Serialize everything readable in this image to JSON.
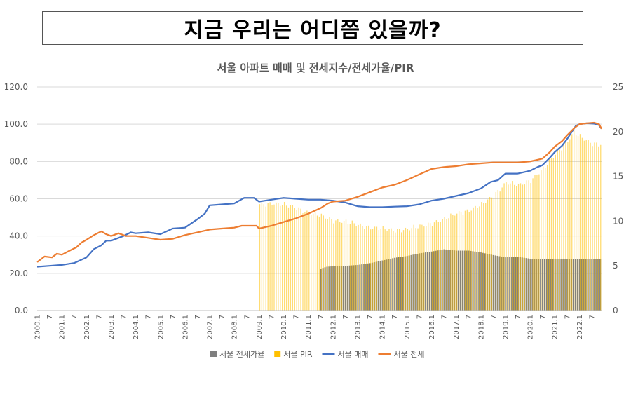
{
  "headline": "지금 우리는 어디쯤 있을까?",
  "chart_data": {
    "type": "line",
    "title": "서울 아파트 매매 및 전세지수/전세가율/PIR",
    "y_left": {
      "min": 0,
      "max": 120,
      "ticks": [
        "0.0",
        "20.0",
        "40.0",
        "60.0",
        "80.0",
        "100.0",
        "120.0"
      ]
    },
    "y_right": {
      "min": 0,
      "max": 25,
      "ticks": [
        "0",
        "5",
        "10",
        "15",
        "20",
        "25"
      ]
    },
    "x_start": 2000,
    "x_end": 2022.9,
    "x_ticks": [
      {
        "x": 2000.0,
        "label": "2000.1"
      },
      {
        "x": 2000.5,
        "label": "7"
      },
      {
        "x": 2001.0,
        "label": "2001.1"
      },
      {
        "x": 2001.5,
        "label": "7"
      },
      {
        "x": 2002.0,
        "label": "2002.1"
      },
      {
        "x": 2002.5,
        "label": "7"
      },
      {
        "x": 2003.0,
        "label": "2003.1"
      },
      {
        "x": 2003.5,
        "label": "7"
      },
      {
        "x": 2004.0,
        "label": "2004.1"
      },
      {
        "x": 2004.5,
        "label": "7"
      },
      {
        "x": 2005.0,
        "label": "2005.1"
      },
      {
        "x": 2005.5,
        "label": "7"
      },
      {
        "x": 2006.0,
        "label": "2006.1"
      },
      {
        "x": 2006.5,
        "label": "7"
      },
      {
        "x": 2007.0,
        "label": "2007.1"
      },
      {
        "x": 2007.5,
        "label": "7"
      },
      {
        "x": 2008.0,
        "label": "2008.1"
      },
      {
        "x": 2008.5,
        "label": "7"
      },
      {
        "x": 2009.0,
        "label": "2009.1"
      },
      {
        "x": 2009.5,
        "label": "7"
      },
      {
        "x": 2010.0,
        "label": "2010.1"
      },
      {
        "x": 2010.5,
        "label": "7"
      },
      {
        "x": 2011.0,
        "label": "2011.1"
      },
      {
        "x": 2011.5,
        "label": "7"
      },
      {
        "x": 2012.0,
        "label": "2012.1"
      },
      {
        "x": 2012.5,
        "label": "7"
      },
      {
        "x": 2013.0,
        "label": "2013.1"
      },
      {
        "x": 2013.5,
        "label": "7"
      },
      {
        "x": 2014.0,
        "label": "2014.1"
      },
      {
        "x": 2014.5,
        "label": "7"
      },
      {
        "x": 2015.0,
        "label": "2015.1"
      },
      {
        "x": 2015.5,
        "label": "7"
      },
      {
        "x": 2016.0,
        "label": "2016.1"
      },
      {
        "x": 2016.5,
        "label": "7"
      },
      {
        "x": 2017.0,
        "label": "2017.1"
      },
      {
        "x": 2017.5,
        "label": "7"
      },
      {
        "x": 2018.0,
        "label": "2018.1"
      },
      {
        "x": 2018.5,
        "label": "7"
      },
      {
        "x": 2019.0,
        "label": "2019.1"
      },
      {
        "x": 2019.5,
        "label": "7"
      },
      {
        "x": 2020.0,
        "label": "2020.1"
      },
      {
        "x": 2020.5,
        "label": "7"
      },
      {
        "x": 2021.0,
        "label": "2021.1"
      },
      {
        "x": 2021.5,
        "label": "7"
      },
      {
        "x": 2022.0,
        "label": "2022.1"
      },
      {
        "x": 2022.5,
        "label": "7"
      }
    ],
    "grid": "horizontal",
    "legend_position": "bottom",
    "series": [
      {
        "name": "서울 전세가율",
        "kind": "bar",
        "axis": "right",
        "color": "#7f7f7f",
        "points": [
          [
            2011.5,
            4.7
          ],
          [
            2011.75,
            4.9
          ],
          [
            2012.0,
            4.95
          ],
          [
            2012.5,
            5.0
          ],
          [
            2013.0,
            5.1
          ],
          [
            2013.5,
            5.3
          ],
          [
            2014.0,
            5.6
          ],
          [
            2014.5,
            5.9
          ],
          [
            2015.0,
            6.1
          ],
          [
            2015.5,
            6.4
          ],
          [
            2016.0,
            6.6
          ],
          [
            2016.5,
            6.85
          ],
          [
            2017.0,
            6.7
          ],
          [
            2017.5,
            6.7
          ],
          [
            2018.0,
            6.5
          ],
          [
            2018.5,
            6.2
          ],
          [
            2019.0,
            5.95
          ],
          [
            2019.5,
            6.0
          ],
          [
            2020.0,
            5.8
          ],
          [
            2020.5,
            5.75
          ],
          [
            2021.0,
            5.8
          ],
          [
            2021.5,
            5.8
          ],
          [
            2022.0,
            5.75
          ],
          [
            2022.5,
            5.75
          ],
          [
            2022.85,
            5.75
          ]
        ]
      },
      {
        "name": "서울 PIR",
        "kind": "bar",
        "axis": "right",
        "color": "#ffc000",
        "points": [
          [
            2009.0,
            11.9
          ],
          [
            2009.5,
            12.0
          ],
          [
            2010.0,
            11.8
          ],
          [
            2010.5,
            11.5
          ],
          [
            2011.0,
            10.9
          ],
          [
            2011.5,
            10.6
          ],
          [
            2012.0,
            10.1
          ],
          [
            2012.5,
            9.9
          ],
          [
            2013.0,
            9.6
          ],
          [
            2013.5,
            9.3
          ],
          [
            2014.0,
            9.1
          ],
          [
            2014.5,
            9.0
          ],
          [
            2015.0,
            9.1
          ],
          [
            2015.5,
            9.4
          ],
          [
            2016.0,
            9.8
          ],
          [
            2016.5,
            10.2
          ],
          [
            2017.0,
            10.9
          ],
          [
            2017.5,
            11.2
          ],
          [
            2018.0,
            11.8
          ],
          [
            2018.5,
            12.9
          ],
          [
            2019.0,
            14.3
          ],
          [
            2019.5,
            14.0
          ],
          [
            2020.0,
            14.6
          ],
          [
            2020.5,
            15.8
          ],
          [
            2021.0,
            17.5
          ],
          [
            2021.5,
            19.0
          ],
          [
            2021.75,
            19.9
          ],
          [
            2022.0,
            19.4
          ],
          [
            2022.5,
            18.7
          ],
          [
            2022.85,
            18.6
          ]
        ]
      },
      {
        "name": "서울 매매",
        "kind": "line",
        "axis": "left",
        "color": "#4472c4",
        "points": [
          [
            2000.0,
            23.5
          ],
          [
            2000.5,
            24.0
          ],
          [
            2001.0,
            24.5
          ],
          [
            2001.5,
            25.5
          ],
          [
            2002.0,
            28.5
          ],
          [
            2002.3,
            33.0
          ],
          [
            2002.6,
            35.0
          ],
          [
            2002.8,
            37.5
          ],
          [
            2003.0,
            37.5
          ],
          [
            2003.5,
            40.0
          ],
          [
            2003.8,
            42.0
          ],
          [
            2004.0,
            41.5
          ],
          [
            2004.5,
            42.0
          ],
          [
            2005.0,
            41.0
          ],
          [
            2005.5,
            44.0
          ],
          [
            2006.0,
            44.5
          ],
          [
            2006.5,
            49.0
          ],
          [
            2006.8,
            52.0
          ],
          [
            2007.0,
            56.5
          ],
          [
            2007.5,
            57.0
          ],
          [
            2008.0,
            57.5
          ],
          [
            2008.4,
            60.5
          ],
          [
            2008.8,
            60.5
          ],
          [
            2009.0,
            58.5
          ],
          [
            2009.5,
            59.5
          ],
          [
            2010.0,
            60.5
          ],
          [
            2010.5,
            60.0
          ],
          [
            2011.0,
            59.5
          ],
          [
            2011.5,
            59.5
          ],
          [
            2012.0,
            59.0
          ],
          [
            2012.5,
            58.0
          ],
          [
            2013.0,
            56.0
          ],
          [
            2013.5,
            55.5
          ],
          [
            2014.0,
            55.5
          ],
          [
            2014.5,
            55.8
          ],
          [
            2015.0,
            56.0
          ],
          [
            2015.5,
            57.0
          ],
          [
            2016.0,
            59.0
          ],
          [
            2016.5,
            60.0
          ],
          [
            2017.0,
            61.5
          ],
          [
            2017.5,
            63.0
          ],
          [
            2018.0,
            65.5
          ],
          [
            2018.4,
            69.0
          ],
          [
            2018.7,
            70.0
          ],
          [
            2019.0,
            73.5
          ],
          [
            2019.5,
            73.5
          ],
          [
            2020.0,
            75.0
          ],
          [
            2020.3,
            77.0
          ],
          [
            2020.5,
            78.0
          ],
          [
            2020.8,
            82.0
          ],
          [
            2021.0,
            85.0
          ],
          [
            2021.3,
            88.5
          ],
          [
            2021.5,
            92.0
          ],
          [
            2021.7,
            96.0
          ],
          [
            2021.85,
            99.0
          ],
          [
            2022.0,
            100.0
          ],
          [
            2022.3,
            100.5
          ],
          [
            2022.6,
            100.3
          ],
          [
            2022.8,
            99.5
          ],
          [
            2022.88,
            97.8
          ]
        ]
      },
      {
        "name": "서울 전세",
        "kind": "line",
        "axis": "left",
        "color": "#ed7d31",
        "points": [
          [
            2000.0,
            26.0
          ],
          [
            2000.3,
            29.0
          ],
          [
            2000.6,
            28.5
          ],
          [
            2000.8,
            30.5
          ],
          [
            2001.0,
            30.0
          ],
          [
            2001.3,
            32.0
          ],
          [
            2001.6,
            34.0
          ],
          [
            2001.8,
            36.5
          ],
          [
            2002.0,
            38.0
          ],
          [
            2002.3,
            40.5
          ],
          [
            2002.6,
            42.5
          ],
          [
            2002.8,
            41.0
          ],
          [
            2003.0,
            40.0
          ],
          [
            2003.3,
            41.5
          ],
          [
            2003.6,
            40.0
          ],
          [
            2004.0,
            40.0
          ],
          [
            2004.5,
            39.0
          ],
          [
            2005.0,
            38.0
          ],
          [
            2005.5,
            38.5
          ],
          [
            2006.0,
            40.5
          ],
          [
            2006.5,
            42.0
          ],
          [
            2007.0,
            43.5
          ],
          [
            2007.5,
            44.0
          ],
          [
            2008.0,
            44.5
          ],
          [
            2008.3,
            45.5
          ],
          [
            2008.9,
            45.5
          ],
          [
            2009.0,
            44.0
          ],
          [
            2009.5,
            45.5
          ],
          [
            2010.0,
            47.5
          ],
          [
            2010.5,
            49.5
          ],
          [
            2011.0,
            52.0
          ],
          [
            2011.5,
            55.0
          ],
          [
            2011.8,
            57.5
          ],
          [
            2012.0,
            58.5
          ],
          [
            2012.5,
            59.0
          ],
          [
            2013.0,
            61.0
          ],
          [
            2013.5,
            63.5
          ],
          [
            2014.0,
            66.0
          ],
          [
            2014.5,
            67.5
          ],
          [
            2015.0,
            70.0
          ],
          [
            2015.5,
            73.0
          ],
          [
            2016.0,
            76.0
          ],
          [
            2016.5,
            77.0
          ],
          [
            2017.0,
            77.5
          ],
          [
            2017.5,
            78.5
          ],
          [
            2018.0,
            79.0
          ],
          [
            2018.5,
            79.5
          ],
          [
            2019.0,
            79.5
          ],
          [
            2019.5,
            79.5
          ],
          [
            2020.0,
            80.0
          ],
          [
            2020.5,
            81.5
          ],
          [
            2020.8,
            85.0
          ],
          [
            2021.0,
            88.0
          ],
          [
            2021.3,
            91.0
          ],
          [
            2021.5,
            94.0
          ],
          [
            2021.8,
            98.0
          ],
          [
            2022.0,
            100.0
          ],
          [
            2022.3,
            100.5
          ],
          [
            2022.6,
            100.8
          ],
          [
            2022.8,
            100.0
          ],
          [
            2022.9,
            97.5
          ]
        ]
      }
    ]
  }
}
